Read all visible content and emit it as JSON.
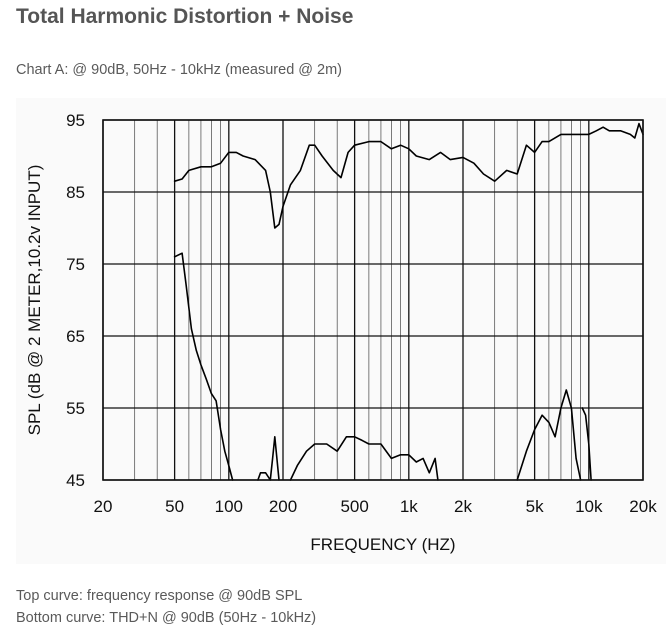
{
  "page": {
    "title": "Total Harmonic Distortion + Noise",
    "caption": "Chart A: @ 90dB, 50Hz - 10kHz (measured @ 2m)",
    "notes": [
      "Top curve: frequency response @ 90dB SPL",
      "Bottom curve: THD+N @ 90dB (50Hz - 10kHz)"
    ]
  },
  "chart_data": {
    "type": "line",
    "xlabel": "FREQUENCY  (HZ)",
    "ylabel": "SPL (dB @ 2 METER,10.2v  INPUT)",
    "xscale": "log",
    "xlim": [
      20,
      20000
    ],
    "ylim": [
      45,
      95
    ],
    "grid": true,
    "line_color": "#000000",
    "x_ticks": [
      {
        "value": 20,
        "label": "20"
      },
      {
        "value": 50,
        "label": "50"
      },
      {
        "value": 100,
        "label": "100"
      },
      {
        "value": 200,
        "label": "200"
      },
      {
        "value": 500,
        "label": "500"
      },
      {
        "value": 1000,
        "label": "1k"
      },
      {
        "value": 2000,
        "label": "2k"
      },
      {
        "value": 5000,
        "label": "5k"
      },
      {
        "value": 10000,
        "label": "10k"
      },
      {
        "value": 20000,
        "label": "20k"
      }
    ],
    "y_ticks": [
      95,
      85,
      75,
      65,
      55,
      45
    ],
    "series": [
      {
        "points": [
          [
            50,
            86.5
          ],
          [
            55,
            86.8
          ],
          [
            60,
            88
          ],
          [
            70,
            88.5
          ],
          [
            80,
            88.5
          ],
          [
            90,
            89
          ],
          [
            100,
            90.5
          ],
          [
            110,
            90.5
          ],
          [
            120,
            90
          ],
          [
            140,
            89.5
          ],
          [
            160,
            88
          ],
          [
            170,
            85
          ],
          [
            180,
            80
          ],
          [
            190,
            80.5
          ],
          [
            200,
            83
          ],
          [
            220,
            86
          ],
          [
            250,
            88
          ],
          [
            280,
            91.5
          ],
          [
            300,
            91.5
          ],
          [
            330,
            90
          ],
          [
            380,
            88
          ],
          [
            420,
            87
          ],
          [
            460,
            90.5
          ],
          [
            500,
            91.5
          ],
          [
            600,
            92
          ],
          [
            700,
            92
          ],
          [
            800,
            91
          ],
          [
            900,
            91.5
          ],
          [
            1000,
            91
          ],
          [
            1100,
            90
          ],
          [
            1300,
            89.5
          ],
          [
            1500,
            90.5
          ],
          [
            1700,
            89.5
          ],
          [
            2000,
            89.8
          ],
          [
            2300,
            89
          ],
          [
            2600,
            87.5
          ],
          [
            3000,
            86.5
          ],
          [
            3500,
            88
          ],
          [
            4000,
            87.5
          ],
          [
            4500,
            91.5
          ],
          [
            5000,
            90.5
          ],
          [
            5500,
            92
          ],
          [
            6000,
            92
          ],
          [
            7000,
            93
          ],
          [
            8000,
            93
          ],
          [
            9000,
            93
          ],
          [
            10000,
            93
          ],
          [
            11000,
            93.5
          ],
          [
            12000,
            94
          ],
          [
            13000,
            93.5
          ],
          [
            15000,
            93.5
          ],
          [
            17000,
            93
          ],
          [
            18000,
            92.5
          ],
          [
            19000,
            94.5
          ],
          [
            20000,
            93
          ]
        ]
      },
      {
        "points": [
          [
            50,
            76
          ],
          [
            55,
            76.5
          ],
          [
            58,
            72
          ],
          [
            62,
            66
          ],
          [
            66,
            63
          ],
          [
            70,
            61
          ],
          [
            75,
            59
          ],
          [
            80,
            57
          ],
          [
            85,
            56
          ],
          [
            90,
            52
          ],
          [
            95,
            49
          ],
          [
            100,
            47
          ],
          [
            105,
            45
          ]
        ]
      },
      {
        "points": [
          [
            145,
            45
          ],
          [
            150,
            46
          ],
          [
            160,
            46
          ],
          [
            170,
            45
          ],
          [
            175,
            48
          ],
          [
            180,
            51
          ],
          [
            185,
            48
          ],
          [
            190,
            45
          ]
        ]
      },
      {
        "points": [
          [
            220,
            45
          ],
          [
            240,
            47
          ],
          [
            270,
            49
          ],
          [
            300,
            50
          ],
          [
            350,
            50
          ],
          [
            400,
            49
          ],
          [
            450,
            51
          ],
          [
            500,
            51
          ],
          [
            550,
            50.5
          ],
          [
            600,
            50
          ],
          [
            700,
            50
          ],
          [
            800,
            48
          ],
          [
            900,
            48.5
          ],
          [
            1000,
            48.5
          ],
          [
            1100,
            47.5
          ],
          [
            1200,
            48
          ],
          [
            1300,
            46
          ],
          [
            1400,
            48
          ],
          [
            1450,
            45
          ]
        ]
      },
      {
        "points": [
          [
            4000,
            45
          ],
          [
            4500,
            49
          ],
          [
            5000,
            52
          ],
          [
            5500,
            54
          ],
          [
            6000,
            53
          ],
          [
            6500,
            51
          ],
          [
            7000,
            55
          ],
          [
            7500,
            57.5
          ],
          [
            8000,
            55
          ],
          [
            8500,
            48
          ],
          [
            9000,
            45
          ]
        ]
      },
      {
        "points": [
          [
            9200,
            55
          ],
          [
            9600,
            54
          ],
          [
            10000,
            50
          ],
          [
            10300,
            45
          ]
        ]
      }
    ]
  }
}
